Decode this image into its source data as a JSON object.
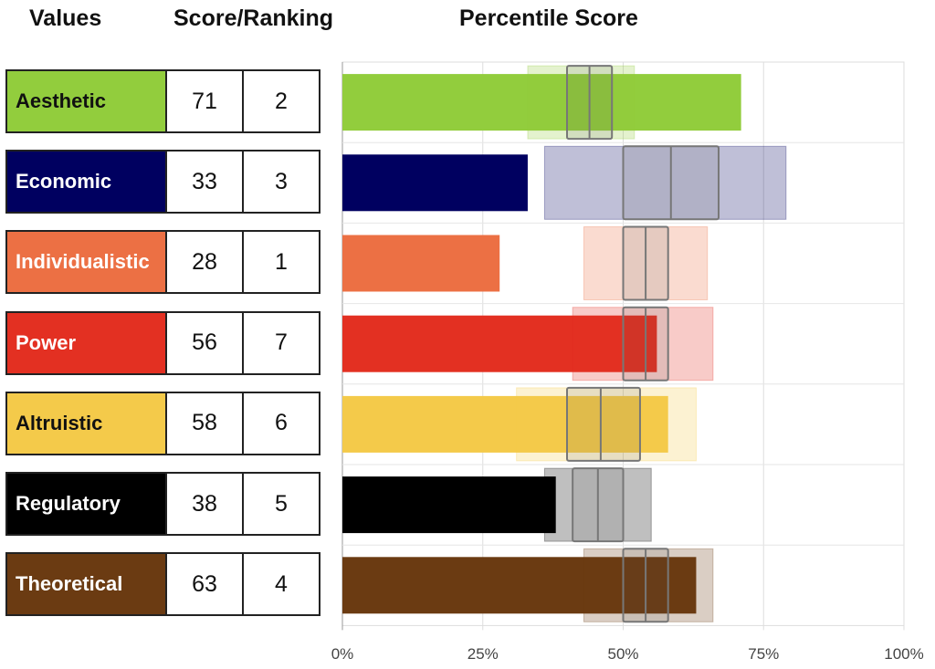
{
  "headers": {
    "values": "Values",
    "score_ranking": "Score/Ranking",
    "percentile": "Percentile Score"
  },
  "chart_data": {
    "type": "bar",
    "orientation": "horizontal",
    "xlim": [
      0,
      100
    ],
    "x_ticks": [
      "0%",
      "25%",
      "50%",
      "75%",
      "100%"
    ],
    "grid": true,
    "categories": [
      "Aesthetic",
      "Economic",
      "Individualistic",
      "Power",
      "Altruistic",
      "Regulatory",
      "Theoretical"
    ],
    "values": [
      71,
      33,
      28,
      56,
      58,
      38,
      63
    ],
    "scores": [
      "71",
      "33",
      "28",
      "56",
      "58",
      "38",
      "63"
    ],
    "rankings": [
      "2",
      "3",
      "1",
      "7",
      "6",
      "5",
      "4"
    ],
    "colors": [
      "#92cd3d",
      "#000060",
      "#ec7044",
      "#e33022",
      "#f4ca4a",
      "#000000",
      "#6b3b12"
    ],
    "text_colors": [
      "#111111",
      "#ffffff",
      "#ffffff",
      "#ffffff",
      "#111111",
      "#ffffff",
      "#ffffff"
    ],
    "reference_ranges": [
      {
        "outer": [
          33,
          52
        ],
        "inner": [
          40,
          48
        ],
        "median": 44
      },
      {
        "outer": [
          36,
          79
        ],
        "inner": [
          50,
          67
        ],
        "median": 58.5
      },
      {
        "outer": [
          43,
          65
        ],
        "inner": [
          50,
          58
        ],
        "median": 54
      },
      {
        "outer": [
          41,
          66
        ],
        "inner": [
          50,
          58
        ],
        "median": 54
      },
      {
        "outer": [
          31,
          63
        ],
        "inner": [
          40,
          53
        ],
        "median": 46
      },
      {
        "outer": [
          36,
          55
        ],
        "inner": [
          41,
          50
        ],
        "median": 45.5
      },
      {
        "outer": [
          43,
          66
        ],
        "inner": [
          50,
          58
        ],
        "median": 54
      }
    ]
  }
}
